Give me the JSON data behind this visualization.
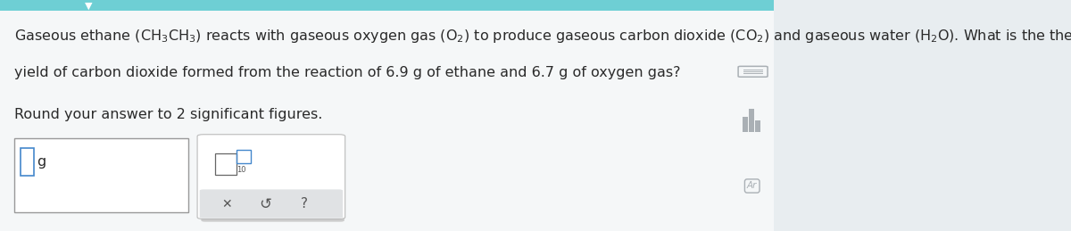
{
  "background_color": "#e8edf0",
  "main_bg": "#f5f7f8",
  "text_line1": "Gaseous ethane $\\left(\\mathrm{CH_3CH_3}\\right)$ reacts with gaseous oxygen gas $\\left(\\mathrm{O_2}\\right)$ to produce gaseous carbon dioxide $\\left(\\mathrm{CO_2}\\right)$ and gaseous water $\\left(\\mathrm{H_2O}\\right)$. What is the theoretical",
  "text_line2": "yield of carbon dioxide formed from the reaction of 6.9 g of ethane and 6.7 g of oxygen gas?",
  "text_line3": "Round your answer to 2 significant figures.",
  "font_size_main": 11.5,
  "text_color": "#2a2a2a",
  "box_color": "#ffffff",
  "box_border": "#999999",
  "box2_border": "#bbbbbb",
  "accent_color": "#6ecfd4",
  "icon_color": "#aab0b5",
  "subbar_color": "#e0e2e4",
  "cursor_color": "#4488cc"
}
